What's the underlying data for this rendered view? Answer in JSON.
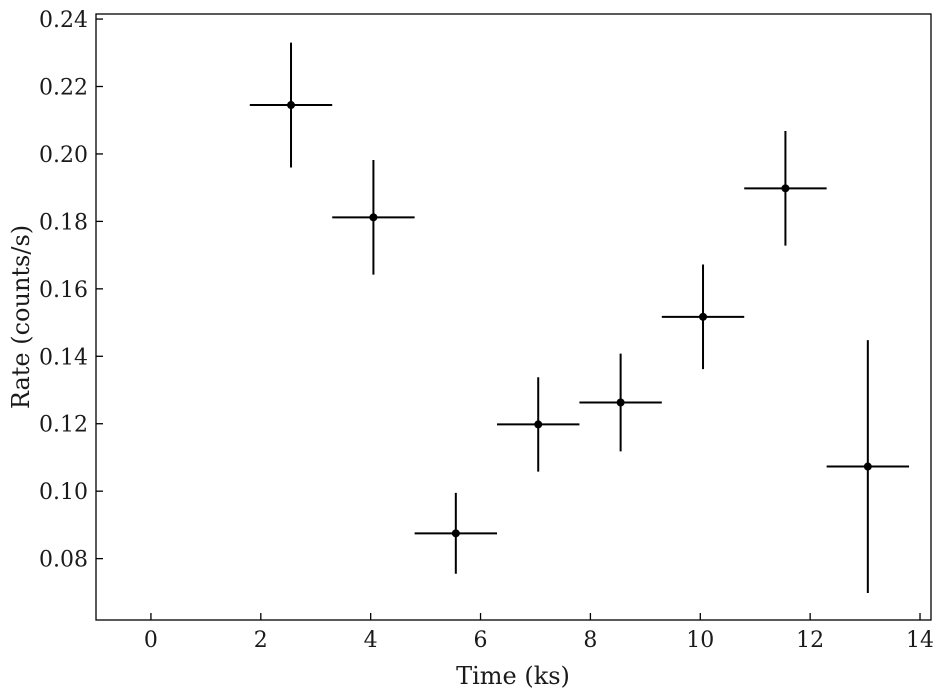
{
  "chart_data": {
    "type": "scatter",
    "title": "",
    "xlabel": "Time (ks)",
    "ylabel": "Rate (counts/s)",
    "xlim": [
      -1,
      14.2
    ],
    "ylim": [
      0.0618,
      0.2415
    ],
    "xticks": [
      0,
      2,
      4,
      6,
      8,
      10,
      12,
      14
    ],
    "yticks": [
      0.08,
      0.1,
      0.12,
      0.14,
      0.16,
      0.18,
      0.2,
      0.22,
      0.24
    ],
    "xtick_labels": [
      "0",
      "2",
      "4",
      "6",
      "8",
      "10",
      "12",
      "14"
    ],
    "ytick_labels": [
      "0.08",
      "0.10",
      "0.12",
      "0.14",
      "0.16",
      "0.18",
      "0.20",
      "0.22",
      "0.24"
    ],
    "grid": false,
    "legend": "none",
    "color": "#000000",
    "series": [
      {
        "points": [
          {
            "x": 2.55,
            "y": 0.2145,
            "xerr": 0.75,
            "yerr_low": 0.0185,
            "yerr_high": 0.0185
          },
          {
            "x": 4.05,
            "y": 0.1812,
            "xerr": 0.75,
            "yerr_low": 0.017,
            "yerr_high": 0.017
          },
          {
            "x": 5.55,
            "y": 0.0875,
            "xerr": 0.75,
            "yerr_low": 0.012,
            "yerr_high": 0.012
          },
          {
            "x": 7.05,
            "y": 0.1198,
            "xerr": 0.75,
            "yerr_low": 0.014,
            "yerr_high": 0.014
          },
          {
            "x": 8.55,
            "y": 0.1263,
            "xerr": 0.75,
            "yerr_low": 0.0145,
            "yerr_high": 0.0145
          },
          {
            "x": 10.05,
            "y": 0.1517,
            "xerr": 0.75,
            "yerr_low": 0.0155,
            "yerr_high": 0.0155
          },
          {
            "x": 11.55,
            "y": 0.1898,
            "xerr": 0.75,
            "yerr_low": 0.017,
            "yerr_high": 0.017
          },
          {
            "x": 13.05,
            "y": 0.1073,
            "xerr": 0.75,
            "yerr_low": 0.0375,
            "yerr_high": 0.0375
          }
        ]
      }
    ]
  }
}
